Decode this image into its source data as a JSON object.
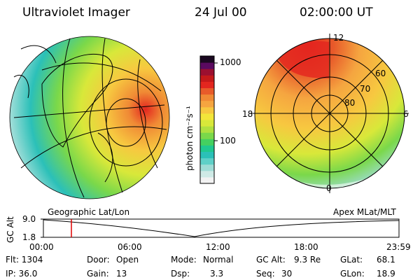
{
  "header": {
    "title": "Ultraviolet Imager",
    "date": "24 Jul 00",
    "time": "02:00:00 UT"
  },
  "colorbar": {
    "unit_label": "photon cm⁻²s⁻¹",
    "tick_1000": "1000",
    "tick_100": "100",
    "colors": [
      "#f2f2f2",
      "#cfeae6",
      "#9fdcd6",
      "#5fd0c8",
      "#2bc0b8",
      "#20c890",
      "#44d060",
      "#7ad84a",
      "#b0e040",
      "#d8e83a",
      "#f3e63a",
      "#f7c840",
      "#f5a540",
      "#f08a35",
      "#e85b2a",
      "#e3261f",
      "#c51a1a",
      "#9c1030",
      "#5a0a60",
      "#1a0820"
    ]
  },
  "polar_plot": {
    "labels": {
      "top": "12",
      "left": "18",
      "right": "6",
      "bottom": "0",
      "lat_60": "60",
      "lat_70": "70",
      "lat_80": "80"
    }
  },
  "altitude_plot": {
    "y_axis_label": "GC Alt",
    "y_top": "9.0",
    "y_bottom": "1.8",
    "left_title": "Geographic Lat/Lon",
    "right_title": "Apex MLat/MLT",
    "x_ticks": [
      "00:00",
      "06:00",
      "12:00",
      "18:00",
      "23:59"
    ],
    "marker_color": "#e00000"
  },
  "info": {
    "flt": "Flt: 1304",
    "ip": "IP: 36.0",
    "door_label": "Door:",
    "door_value": "Open",
    "gain_label": "Gain:",
    "gain_value": "13",
    "mode_label": "Mode:",
    "mode_value": "Normal",
    "dsp_label": "Dsp:",
    "dsp_value": "3.3",
    "gcalt_label": "GC Alt:",
    "gcalt_value": "9.3 Re",
    "seq_label": "Seq:",
    "seq_value": "30",
    "glat_label": "GLat:",
    "glat_value": "68.1",
    "glon_label": "GLon:",
    "glon_value": "18.9"
  }
}
